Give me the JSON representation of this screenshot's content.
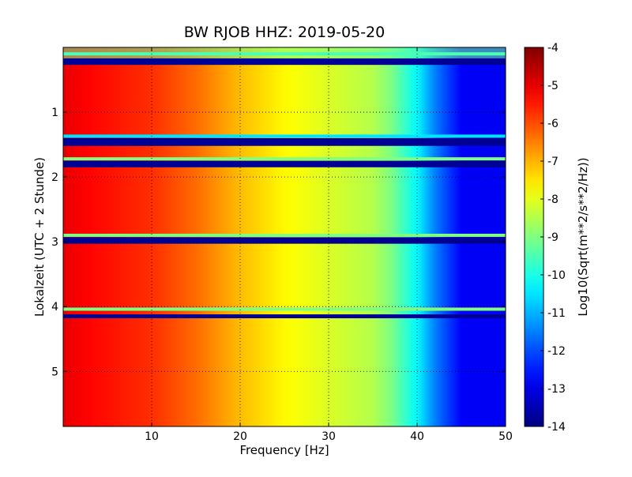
{
  "chart_data": {
    "type": "heatmap",
    "title": "BW RJOB HHZ: 2019-05-20",
    "xlabel": "Frequency [Hz]",
    "ylabel": "Lokalzeit (UTC + 2 Stunde)",
    "xlim": [
      0,
      50
    ],
    "ylim": [
      5.85,
      0
    ],
    "xticks": [
      "10",
      "20",
      "30",
      "40",
      "50"
    ],
    "yticks": [
      "1",
      "2",
      "3",
      "4",
      "5"
    ],
    "grid": true,
    "colormap": "jet",
    "colorbar": {
      "label": "Log10(Sqrt(m**2/s**2/Hz))",
      "range": [
        -14,
        -4
      ],
      "ticks": [
        "-14",
        "-13",
        "-12",
        "-11",
        "-10",
        "-9",
        "-8",
        "-7",
        "-6",
        "-5",
        "-4"
      ]
    },
    "spectrum_profile": {
      "frequency_hz": [
        0,
        2,
        5,
        10,
        15,
        20,
        25,
        30,
        35,
        37,
        40,
        42,
        45,
        50
      ],
      "log10_amplitude": [
        -5.0,
        -5.2,
        -5.4,
        -5.7,
        -6.3,
        -7.1,
        -7.7,
        -8.1,
        -8.5,
        -9.0,
        -10.3,
        -11.5,
        -12.8,
        -12.9
      ]
    },
    "gap_bands": [
      {
        "start_hour": 0.17,
        "end_hour": 0.27,
        "level": -13.8
      },
      {
        "start_hour": 1.4,
        "end_hour": 1.52,
        "level": -13.8
      },
      {
        "start_hour": 1.75,
        "end_hour": 1.85,
        "level": -13.8
      },
      {
        "start_hour": 2.93,
        "end_hour": 3.03,
        "level": -13.8
      },
      {
        "start_hour": 4.12,
        "end_hour": 4.18,
        "level": -13.8
      }
    ],
    "bright_edges": [
      {
        "hour": 0.1,
        "level": -9.5
      },
      {
        "hour": 1.37,
        "level": -10.5
      },
      {
        "hour": 1.72,
        "level": -9.0
      },
      {
        "hour": 2.9,
        "level": -9.0
      },
      {
        "hour": 4.04,
        "level": -9.0
      }
    ]
  }
}
